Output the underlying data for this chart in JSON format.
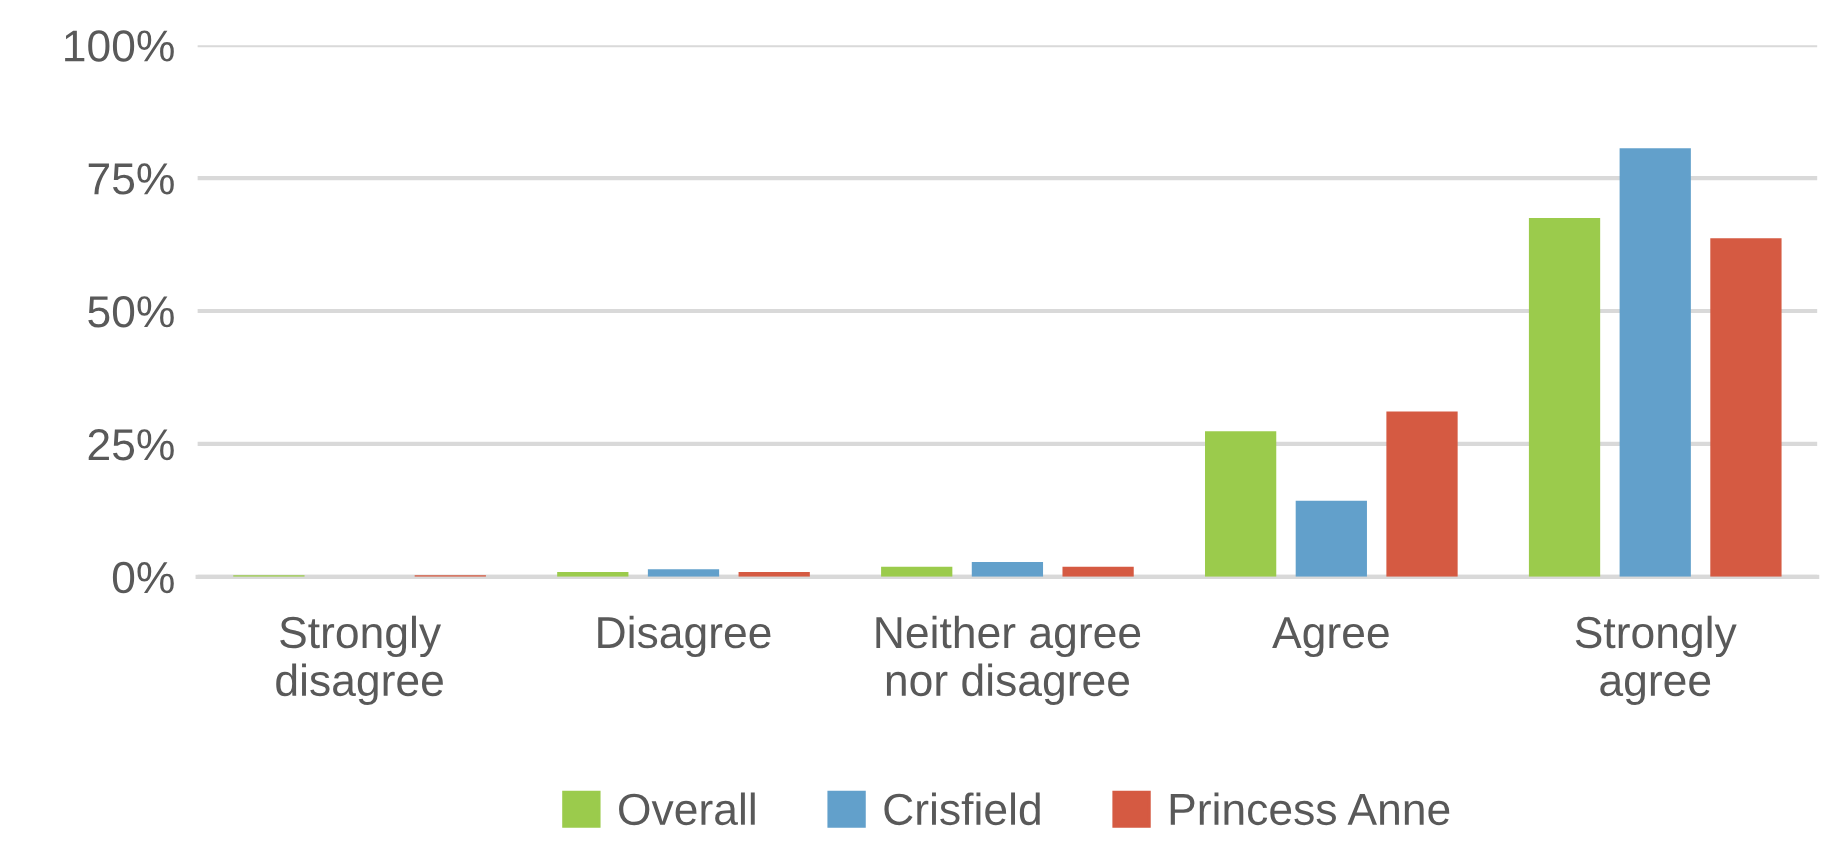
{
  "chart_data": {
    "type": "bar",
    "categories": [
      "Strongly\ndisagree",
      "Disagree",
      "Neither agree\nnor disagree",
      "Agree",
      "Strongly\nagree"
    ],
    "series": [
      {
        "name": "Overall",
        "color": "#9bcb4c",
        "values": [
          0.3,
          0.9,
          1.9,
          27.4,
          67.5
        ]
      },
      {
        "name": "Crisfield",
        "color": "#62a0cb",
        "values": [
          0,
          1.4,
          2.8,
          14.3,
          80.6
        ]
      },
      {
        "name": "Princess Anne",
        "color": "#d55a42",
        "values": [
          0.3,
          0.9,
          1.9,
          31.1,
          63.7
        ]
      }
    ],
    "ylim": [
      0,
      100
    ],
    "yticks": [
      {
        "value": 0,
        "label": "0%"
      },
      {
        "value": 25,
        "label": "25%"
      },
      {
        "value": 50,
        "label": "50%"
      },
      {
        "value": 75,
        "label": "75%"
      },
      {
        "value": 100,
        "label": "100%"
      }
    ],
    "grid": "y",
    "legend": "bottom"
  }
}
